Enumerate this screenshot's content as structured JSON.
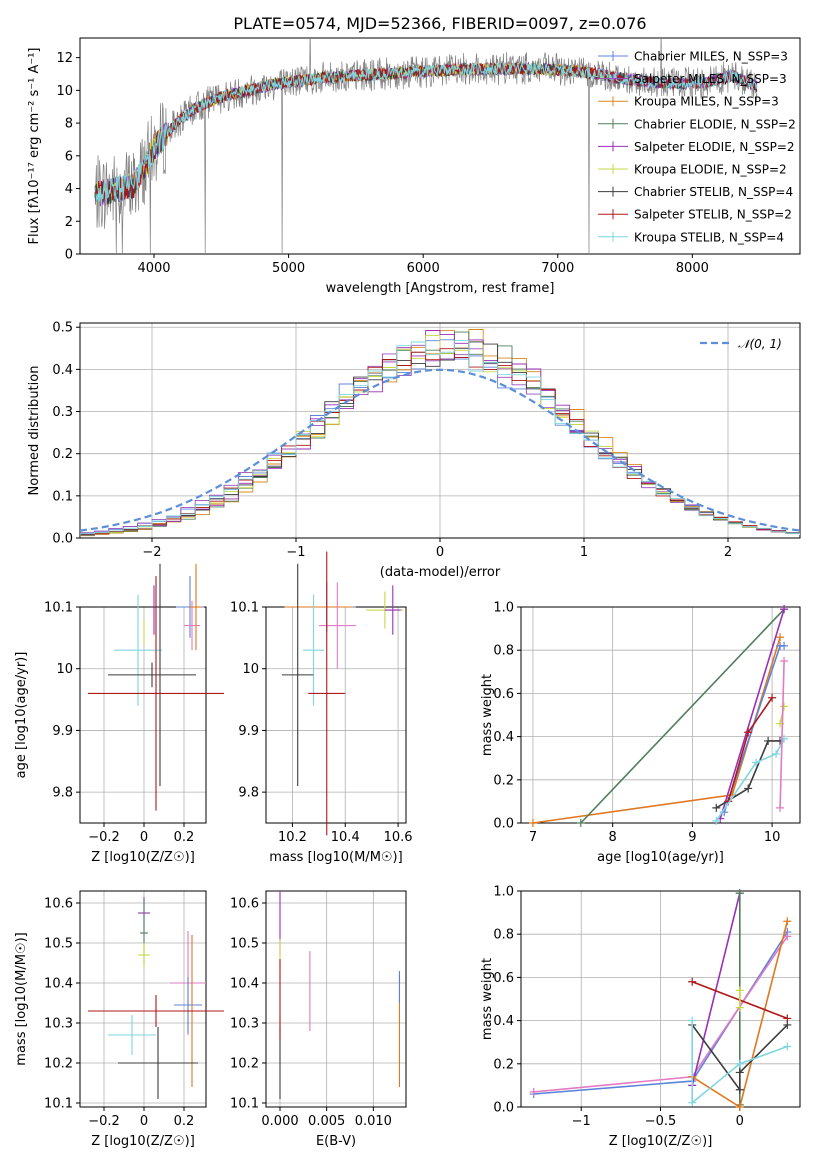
{
  "colors": {
    "chabrier_miles": "#5b84d9",
    "salpeter_miles": "#9a4fc0",
    "kroupa_miles": "#d98a1f",
    "chabrier_elodie": "#4f7f5a",
    "salpeter_elodie": "#9b2fb8",
    "kroupa_elodie": "#c8d84a",
    "chabrier_stelib": "#3c3c3c",
    "salpeter_stelib": "#b01818",
    "kroupa_stelib": "#7fd6e0",
    "data": "#808080",
    "pink": "#e37ac4",
    "orange": "#e0781f",
    "gaussian": "#5b8fd9",
    "grid": "#b0b0b0"
  },
  "chart_data": [
    {
      "type": "line",
      "title": "PLATE=0574, MJD=52366, FIBERID=0097, z=0.076",
      "xlabel": "wavelength [Angstrom, rest frame]",
      "ylabel": "Flux [fλ10⁻¹⁷ erg cm⁻² s⁻¹ A⁻¹]",
      "xlim": [
        3450,
        8800
      ],
      "ylim": [
        0,
        13.2
      ],
      "xticks": [
        4000,
        5000,
        6000,
        7000,
        8000
      ],
      "yticks": [
        0,
        2,
        4,
        6,
        8,
        10,
        12
      ],
      "grid": false,
      "legend_placement": "right",
      "continuum": {
        "x": [
          3550,
          3700,
          3850,
          4000,
          4150,
          4300,
          4500,
          4700,
          4900,
          5100,
          5300,
          5500,
          5700,
          5900,
          6100,
          6300,
          6500,
          6700,
          6900,
          7100,
          7300,
          7500,
          7700,
          7900,
          8100,
          8300,
          8500
        ],
        "y": [
          3.6,
          3.9,
          4.2,
          6.4,
          7.9,
          8.9,
          9.6,
          10.0,
          10.4,
          10.6,
          10.8,
          10.9,
          11.0,
          11.1,
          11.2,
          11.3,
          11.3,
          11.35,
          11.3,
          11.2,
          11.0,
          10.7,
          10.5,
          10.4,
          10.5,
          10.9,
          10.2
        ]
      },
      "series": [
        {
          "name": "Chabrier MILES, N_SSP=3",
          "color_key": "chabrier_miles"
        },
        {
          "name": "Salpeter MILES, N_SSP=3",
          "color_key": "salpeter_miles"
        },
        {
          "name": "Kroupa MILES, N_SSP=3",
          "color_key": "kroupa_miles"
        },
        {
          "name": "Chabrier ELODIE, N_SSP=2",
          "color_key": "chabrier_elodie"
        },
        {
          "name": "Salpeter ELODIE, N_SSP=2",
          "color_key": "salpeter_elodie"
        },
        {
          "name": "Kroupa ELODIE, N_SSP=2",
          "color_key": "kroupa_elodie"
        },
        {
          "name": "Chabrier STELIB, N_SSP=4",
          "color_key": "chabrier_stelib"
        },
        {
          "name": "Salpeter STELIB, N_SSP=2",
          "color_key": "salpeter_stelib"
        },
        {
          "name": "Kroupa STELIB, N_SSP=4",
          "color_key": "kroupa_stelib"
        }
      ]
    },
    {
      "type": "line",
      "xlabel": "(data-model)/error",
      "ylabel": "Normed distribution",
      "xlim": [
        -2.5,
        2.5
      ],
      "ylim": [
        0,
        0.51
      ],
      "xticks": [
        -2,
        -1,
        0,
        1,
        2
      ],
      "yticks": [
        0.0,
        0.1,
        0.2,
        0.3,
        0.4,
        0.5
      ],
      "grid": true,
      "legend_placement": "top-right",
      "gaussian_label": "𝒩(0, 1)",
      "bin_edges_step": 0.1,
      "histogram_peak": 0.47
    },
    {
      "type": "scatter",
      "xlabel": "Z [log10(Z/Z☉)]",
      "ylabel": "age [log10(age/yr)]",
      "xlim": [
        -0.32,
        0.31
      ],
      "ylim": [
        9.75,
        10.1
      ],
      "xticks": [
        -0.2,
        0.0,
        0.2
      ],
      "yticks": [
        9.8,
        9.9,
        10.0,
        10.1
      ],
      "grid": true
    },
    {
      "type": "scatter",
      "xlabel": "mass [log10(M/M☉)]",
      "xlim": [
        10.1,
        10.63
      ],
      "ylim": [
        9.75,
        10.1
      ],
      "xticks": [
        10.2,
        10.4,
        10.6
      ],
      "yticks": [
        9.8,
        9.9,
        10.0,
        10.1
      ],
      "grid": true
    },
    {
      "type": "line",
      "xlabel": "age [log10(age/yr)]",
      "ylabel": "mass weight",
      "xlim": [
        6.85,
        10.35
      ],
      "ylim": [
        0,
        1.0
      ],
      "xticks": [
        7,
        8,
        9,
        10
      ],
      "yticks": [
        0.0,
        0.2,
        0.4,
        0.6,
        0.8,
        1.0
      ],
      "grid": true
    },
    {
      "type": "scatter",
      "xlabel": "Z [log10(Z/Z☉)]",
      "ylabel": "mass [log10(M/M☉)]",
      "xlim": [
        -0.32,
        0.31
      ],
      "ylim": [
        10.09,
        10.63
      ],
      "xticks": [
        -0.2,
        0.0,
        0.2
      ],
      "yticks": [
        10.1,
        10.2,
        10.3,
        10.4,
        10.5,
        10.6
      ],
      "grid": true
    },
    {
      "type": "scatter",
      "xlabel": "E(B-V)",
      "xlim": [
        -0.0015,
        0.0135
      ],
      "ylim": [
        10.09,
        10.63
      ],
      "xticks": [
        0.0,
        0.005,
        0.01
      ],
      "xticklabels": [
        "0.000",
        "0.005",
        "0.010"
      ],
      "yticks": [
        10.1,
        10.2,
        10.3,
        10.4,
        10.5,
        10.6
      ],
      "grid": true
    },
    {
      "type": "line",
      "xlabel": "Z [log10(Z/Z☉)]",
      "ylabel": "mass weight",
      "xlim": [
        -1.38,
        0.38
      ],
      "ylim": [
        0,
        1.0
      ],
      "xticks": [
        -1.0,
        -0.5,
        0.0
      ],
      "yticks": [
        0.0,
        0.2,
        0.4,
        0.6,
        0.8,
        1.0
      ],
      "grid": true
    }
  ]
}
